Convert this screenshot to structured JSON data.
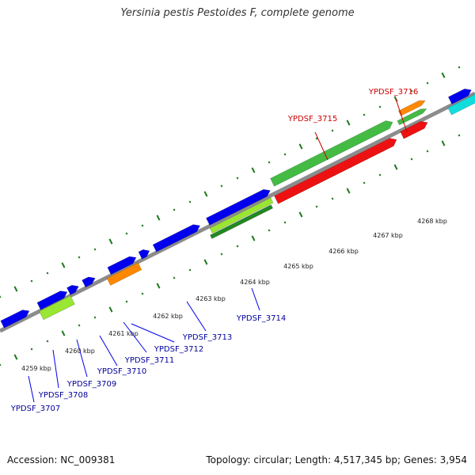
{
  "title": "Yersinia pestis Pestoides F, complete genome",
  "footer": {
    "accession": "Accession: NC_009381",
    "summary": "Topology: circular; Length: 4,517,345 bp; Genes: 3,954"
  },
  "scale": {
    "unit": "kbp",
    "ticks": [
      {
        "kbp": 4259,
        "label": "4259 kbp"
      },
      {
        "kbp": 4260,
        "label": "4260 kbp"
      },
      {
        "kbp": 4261,
        "label": "4261 kbp"
      },
      {
        "kbp": 4262,
        "label": "4262 kbp"
      },
      {
        "kbp": 4263,
        "label": "4263 kbp"
      },
      {
        "kbp": 4264,
        "label": "4264 kbp"
      },
      {
        "kbp": 4265,
        "label": "4265 kbp"
      },
      {
        "kbp": 4266,
        "label": "4266 kbp"
      },
      {
        "kbp": 4267,
        "label": "4267 kbp"
      },
      {
        "kbp": 4268,
        "label": "4268 kbp"
      }
    ]
  },
  "colors": {
    "backbone": "#8c8c8c",
    "tick": "#1f7a1f",
    "gene": "#0000ee",
    "gene_label": "#00009a",
    "highlight_label": "#cc0000",
    "cds_green": "#44bb44",
    "cds_red": "#ee1111",
    "cds_orange": "#ff8800",
    "cds_lime": "#99e633",
    "cds_cyan": "#11dddd"
  },
  "gene_labels": [
    {
      "id": "YPDSF_3707",
      "label": "YPDSF_3707",
      "highlight": false
    },
    {
      "id": "YPDSF_3708",
      "label": "YPDSF_3708",
      "highlight": false
    },
    {
      "id": "YPDSF_3709",
      "label": "YPDSF_3709",
      "highlight": false
    },
    {
      "id": "YPDSF_3710",
      "label": "YPDSF_3710",
      "highlight": false
    },
    {
      "id": "YPDSF_3711",
      "label": "YPDSF_3711",
      "highlight": false
    },
    {
      "id": "YPDSF_3712",
      "label": "YPDSF_3712",
      "highlight": false
    },
    {
      "id": "YPDSF_3713",
      "label": "YPDSF_3713",
      "highlight": false
    },
    {
      "id": "YPDSF_3714",
      "label": "YPDSF_3714",
      "highlight": false
    },
    {
      "id": "YPDSF_3715",
      "label": "YPDSF_3715",
      "highlight": true
    },
    {
      "id": "YPDSF_3716",
      "label": "YPDSF_3716",
      "highlight": true
    }
  ]
}
